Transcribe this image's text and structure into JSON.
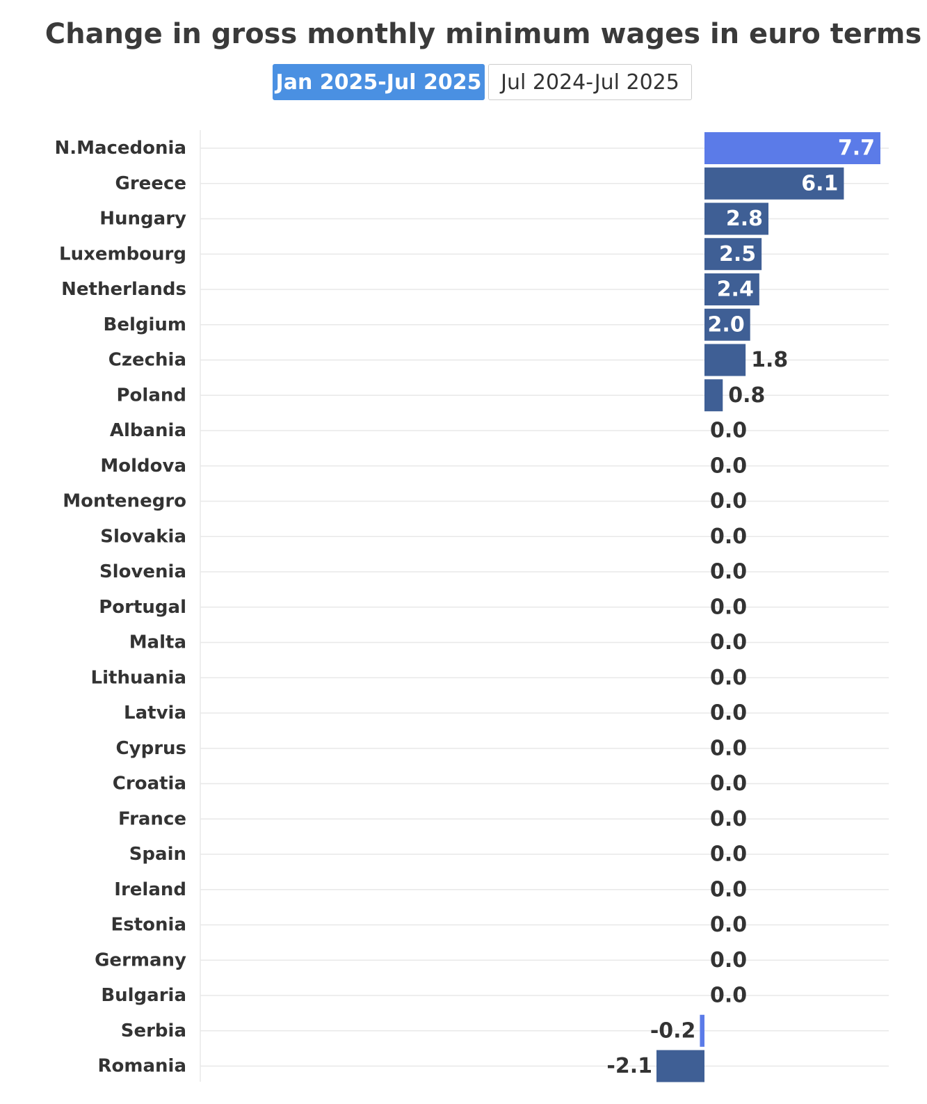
{
  "header": {
    "title": "Change in gross monthly minimum wages in euro terms"
  },
  "tabs": [
    {
      "label": "Jan 2025-Jul 2025",
      "active": true
    },
    {
      "label": "Jul 2024-Jul 2025",
      "active": false
    }
  ],
  "colors": {
    "bar": "#3f5f95",
    "bar_highlight": "#5b7be8",
    "tab_active": "#4a90e2",
    "grid": "#e8e8e8",
    "text": "#333333"
  },
  "chart_data": {
    "type": "bar",
    "orientation": "horizontal",
    "title": "Change in gross monthly minimum wages in euro terms",
    "xlabel": "",
    "ylabel": "",
    "grid": true,
    "highlight": [
      "N.Macedonia",
      "Serbia"
    ],
    "categories": [
      "N.Macedonia",
      "Greece",
      "Hungary",
      "Luxembourg",
      "Netherlands",
      "Belgium",
      "Czechia",
      "Poland",
      "Albania",
      "Moldova",
      "Montenegro",
      "Slovakia",
      "Slovenia",
      "Portugal",
      "Malta",
      "Lithuania",
      "Latvia",
      "Cyprus",
      "Croatia",
      "France",
      "Spain",
      "Ireland",
      "Estonia",
      "Germany",
      "Bulgaria",
      "Serbia",
      "Romania"
    ],
    "values": [
      7.7,
      6.1,
      2.8,
      2.5,
      2.4,
      2.0,
      1.8,
      0.8,
      0.0,
      0.0,
      0.0,
      0.0,
      0.0,
      0.0,
      0.0,
      0.0,
      0.0,
      0.0,
      0.0,
      0.0,
      0.0,
      0.0,
      0.0,
      0.0,
      0.0,
      -0.2,
      -2.1
    ],
    "labels": [
      "7.7",
      "6.1",
      "2.8",
      "2.5",
      "2.4",
      "2.0",
      "1.8",
      "0.8",
      "0.0",
      "0.0",
      "0.0",
      "0.0",
      "0.0",
      "0.0",
      "0.0",
      "0.0",
      "0.0",
      "0.0",
      "0.0",
      "0.0",
      "0.0",
      "0.0",
      "0.0",
      "0.0",
      "0.0",
      "-0.2",
      "-2.1"
    ]
  }
}
